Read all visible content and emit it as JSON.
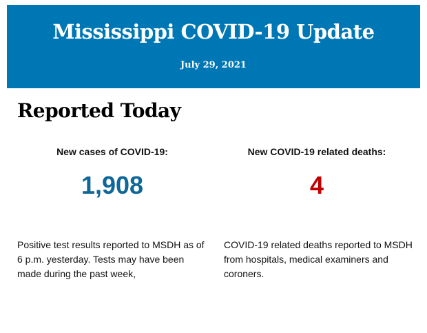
{
  "header": {
    "title": "Mississippi COVID-19 Update",
    "date": "July 29, 2021"
  },
  "section_title": "Reported Today",
  "cases": {
    "label": "New cases of COVID-19:",
    "value": "1,908",
    "color": "#0e6699",
    "description": "Positive test results reported to MSDH as of 6 p.m. yesterday. Tests may have been made during the past week,"
  },
  "deaths": {
    "label": "New COVID-19 related deaths:",
    "value": "4",
    "color": "#c00000",
    "description": "COVID-19 related deaths reported to MSDH from hospitals, medical examiners and coroners."
  }
}
